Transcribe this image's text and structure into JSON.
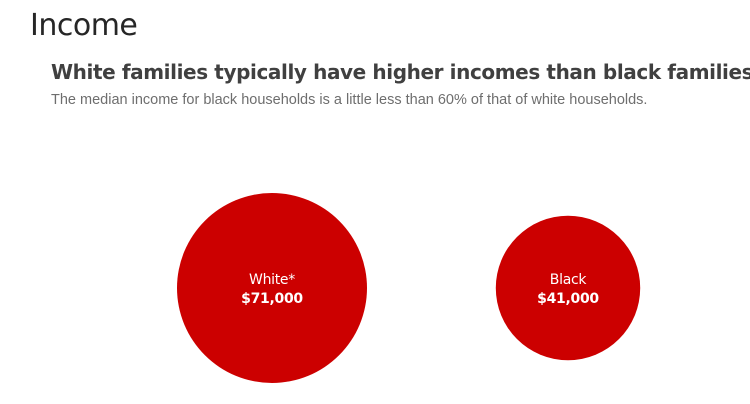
{
  "header": {
    "section_title": "Income",
    "chart_title": "White families typically have higher incomes than black families",
    "chart_subtitle": "The median income for black households is a little less than 60% of that of white households."
  },
  "colors": {
    "bubble": "#cc0000",
    "bubble_text": "#ffffff"
  },
  "chart_data": {
    "type": "bubble",
    "title": "White families typically have higher incomes than black families",
    "subtitle": "The median income for black households is a little less than 60% of that of white households.",
    "unit": "USD",
    "categories": [
      "White*",
      "Black"
    ],
    "values": [
      71000,
      41000
    ],
    "value_labels": [
      "$71,000",
      "$41,000"
    ],
    "size_encoding": "area"
  }
}
